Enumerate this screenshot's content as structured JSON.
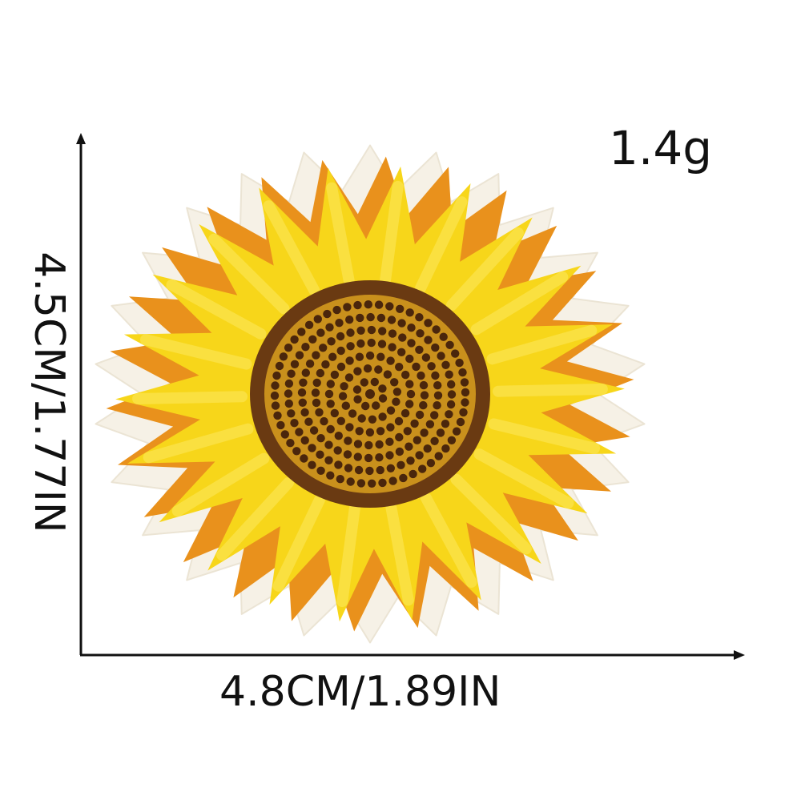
{
  "product": {
    "weight_label": "1.4g",
    "width_label": "4.8CM/1.89IN",
    "height_label": "4.5CM/1.77IN",
    "icon": "sunflower-patch-icon"
  },
  "colors": {
    "background": "#ffffff",
    "text": "#111111",
    "axis": "#111111",
    "patch_border": "#f6f1e6",
    "petal_yellow": "#f7d61a",
    "petal_light": "#fbe34a",
    "petal_orange": "#e9911c",
    "center_brown": "#6a3a12",
    "center_gold": "#c9901c",
    "seed_dark": "#4a260c"
  }
}
